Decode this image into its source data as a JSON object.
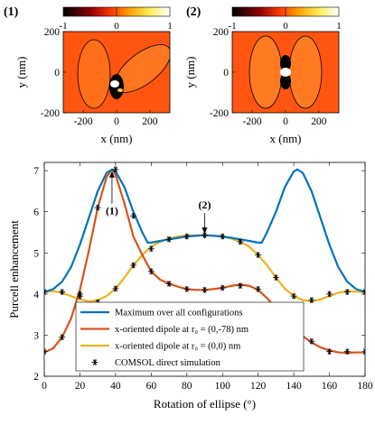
{
  "colors": {
    "max": "#0072BD",
    "dipole78": "#D95319",
    "dipole00": "#EDB120",
    "comsol": "#000000"
  },
  "colorbar": {
    "ticks": [
      "-1",
      "0",
      "1"
    ]
  },
  "maps": [
    {
      "tag": "(1)",
      "xlabel": "x (nm)",
      "ylabel": "y (nm)",
      "xticks": [
        "-200",
        "0",
        "200"
      ],
      "yticks": [
        "200",
        "0",
        "-200"
      ]
    },
    {
      "tag": "(2)",
      "xlabel": "x (nm)",
      "ylabel": "y (nm)",
      "xticks": [
        "-200",
        "0",
        "200"
      ],
      "yticks": [
        "200",
        "0",
        "-200"
      ]
    }
  ],
  "chart_data": {
    "type": "line",
    "xlabel": "Rotation of ellipse (°)",
    "ylabel": "Purcell enhancement",
    "xlim": [
      0,
      180
    ],
    "ylim": [
      2,
      7.2
    ],
    "xticks": [
      0,
      20,
      40,
      60,
      80,
      100,
      120,
      140,
      160,
      180
    ],
    "yticks": [
      2,
      3,
      4,
      5,
      6,
      7
    ],
    "legend_position": "bottom-left",
    "annotations": [
      {
        "label": "(1)",
        "x": 38,
        "y": 7.03
      },
      {
        "label": "(2)",
        "x": 90,
        "y": 5.42
      }
    ],
    "series": [
      {
        "name": "Maximum over all configurations",
        "style": "line",
        "x": [
          0,
          5,
          10,
          15,
          20,
          25,
          30,
          35,
          38,
          40,
          45,
          50,
          55,
          58,
          60,
          70,
          80,
          90,
          100,
          110,
          120,
          122,
          125,
          130,
          135,
          140,
          142,
          145,
          150,
          155,
          160,
          165,
          170,
          175,
          180
        ],
        "y": [
          4.05,
          4.12,
          4.3,
          4.65,
          5.2,
          5.85,
          6.5,
          6.95,
          7.03,
          6.98,
          6.6,
          6.0,
          5.5,
          5.25,
          5.25,
          5.33,
          5.4,
          5.43,
          5.4,
          5.33,
          5.25,
          5.25,
          5.5,
          6.0,
          6.6,
          6.98,
          7.03,
          6.95,
          6.5,
          5.85,
          5.2,
          4.65,
          4.3,
          4.12,
          4.05
        ]
      },
      {
        "name": "x-oriented dipole at r₀ = (0,-78) nm",
        "style": "line",
        "x": [
          0,
          5,
          10,
          15,
          20,
          25,
          30,
          35,
          38,
          40,
          45,
          50,
          55,
          60,
          65,
          70,
          75,
          80,
          85,
          90,
          95,
          100,
          105,
          110,
          115,
          120,
          125,
          130,
          135,
          140,
          145,
          150,
          155,
          160,
          165,
          170,
          175,
          180
        ],
        "y": [
          2.58,
          2.68,
          2.95,
          3.4,
          4.1,
          5.05,
          6.1,
          6.85,
          7.03,
          6.9,
          6.2,
          5.4,
          4.95,
          4.55,
          4.35,
          4.25,
          4.18,
          4.12,
          4.1,
          4.1,
          4.12,
          4.15,
          4.2,
          4.23,
          4.2,
          4.1,
          3.9,
          3.65,
          3.4,
          3.2,
          2.98,
          2.82,
          2.7,
          2.63,
          2.58,
          2.57,
          2.58,
          2.58
        ]
      },
      {
        "name": "x-oriented dipole at r₀ = (0,0) nm",
        "style": "line",
        "x": [
          0,
          5,
          10,
          15,
          20,
          25,
          30,
          35,
          40,
          45,
          50,
          55,
          60,
          65,
          70,
          75,
          80,
          85,
          90,
          95,
          100,
          105,
          110,
          115,
          120,
          125,
          130,
          135,
          140,
          145,
          150,
          155,
          160,
          165,
          170,
          175,
          180
        ],
        "y": [
          4.05,
          4.07,
          4.03,
          3.95,
          3.87,
          3.82,
          3.85,
          3.95,
          4.13,
          4.4,
          4.7,
          4.95,
          5.15,
          5.27,
          5.35,
          5.4,
          5.42,
          5.43,
          5.43,
          5.42,
          5.4,
          5.35,
          5.27,
          5.15,
          4.95,
          4.7,
          4.4,
          4.13,
          3.95,
          3.85,
          3.82,
          3.87,
          3.95,
          4.03,
          4.07,
          4.06,
          4.05
        ]
      },
      {
        "name": "COMSOL direct simulation",
        "style": "marker",
        "points": [
          [
            0,
            2.6
          ],
          [
            0,
            4.05
          ],
          [
            10,
            2.95
          ],
          [
            10,
            4.05
          ],
          [
            20,
            3.95
          ],
          [
            20,
            4.0
          ],
          [
            30,
            3.8
          ],
          [
            30,
            6.1
          ],
          [
            40,
            4.13
          ],
          [
            40,
            7.03
          ],
          [
            50,
            4.7
          ],
          [
            50,
            5.9
          ],
          [
            60,
            4.55
          ],
          [
            60,
            5.1
          ],
          [
            70,
            4.25
          ],
          [
            70,
            5.33
          ],
          [
            80,
            4.12
          ],
          [
            80,
            5.4
          ],
          [
            90,
            4.1
          ],
          [
            90,
            5.43
          ],
          [
            100,
            4.15
          ],
          [
            100,
            5.4
          ],
          [
            110,
            4.2
          ],
          [
            110,
            5.27
          ],
          [
            120,
            4.12
          ],
          [
            120,
            4.95
          ],
          [
            130,
            3.7
          ],
          [
            130,
            4.4
          ],
          [
            140,
            3.2
          ],
          [
            140,
            3.95
          ],
          [
            150,
            2.85
          ],
          [
            150,
            3.85
          ],
          [
            160,
            2.6
          ],
          [
            160,
            4.0
          ],
          [
            170,
            2.6
          ],
          [
            170,
            4.05
          ],
          [
            180,
            2.6
          ],
          [
            180,
            4.05
          ]
        ]
      }
    ]
  }
}
